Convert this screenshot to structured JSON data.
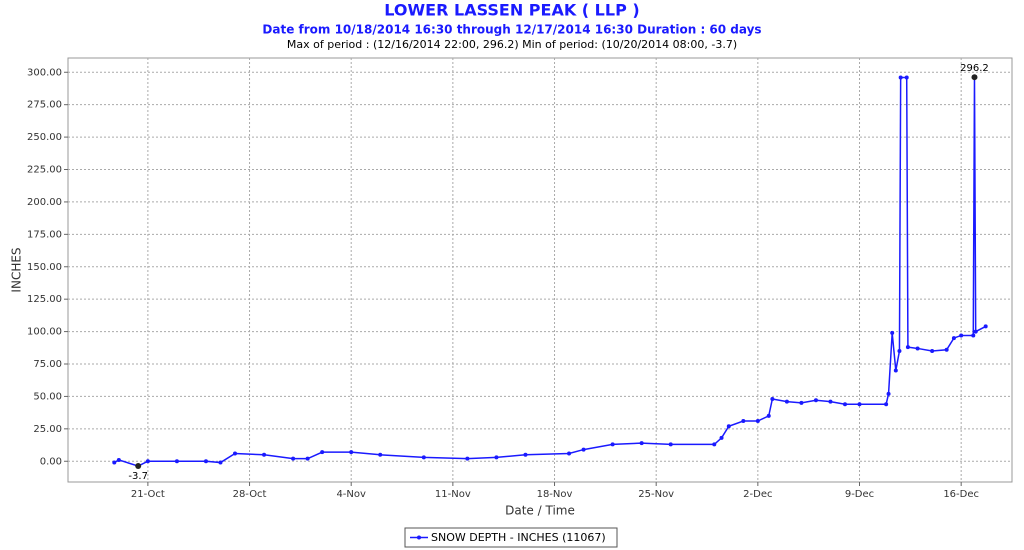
{
  "chart_data": {
    "type": "line",
    "title": "LOWER LASSEN PEAK ( LLP )",
    "subtitle": "Date from 10/18/2014 16:30 through 12/17/2014 16:30 Duration : 60 days",
    "note": "Max of period : (12/16/2014 22:00, 296.2)  Min of period: (10/20/2014 08:00,  -3.7)",
    "x_label": "Date / Time",
    "y_label": "INCHES",
    "grid": true,
    "legend": "bottom",
    "x": [
      "2014-10-18T16:30",
      "2014-10-19T00:00",
      "2014-10-20T08:00",
      "2014-10-21T00:00",
      "2014-10-23T00:00",
      "2014-10-25T00:00",
      "2014-10-26T00:00",
      "2014-10-27T00:00",
      "2014-10-29T00:00",
      "2014-10-31T00:00",
      "2014-11-01T00:00",
      "2014-11-02T00:00",
      "2014-11-04T00:00",
      "2014-11-06T00:00",
      "2014-11-09T00:00",
      "2014-11-12T00:00",
      "2014-11-14T00:00",
      "2014-11-16T00:00",
      "2014-11-19T00:00",
      "2014-11-20T00:00",
      "2014-11-22T00:00",
      "2014-11-24T00:00",
      "2014-11-26T00:00",
      "2014-11-29T00:00",
      "2014-11-29T12:00",
      "2014-11-30T00:00",
      "2014-12-01T00:00",
      "2014-12-02T00:00",
      "2014-12-02T18:00",
      "2014-12-03T00:00",
      "2014-12-04T00:00",
      "2014-12-05T00:00",
      "2014-12-06T00:00",
      "2014-12-07T00:00",
      "2014-12-08T00:00",
      "2014-12-09T00:00",
      "2014-12-10T20:00",
      "2014-12-11T00:00",
      "2014-12-11T06:00",
      "2014-12-11T12:00",
      "2014-12-11T18:00",
      "2014-12-11T20:00",
      "2014-12-12T06:00",
      "2014-12-12T08:00",
      "2014-12-13T00:00",
      "2014-12-14T00:00",
      "2014-12-15T00:00",
      "2014-12-15T12:00",
      "2014-12-16T00:00",
      "2014-12-16T20:00",
      "2014-12-16T22:00",
      "2014-12-17T00:00",
      "2014-12-17T16:30"
    ],
    "series": [
      {
        "name": "SNOW DEPTH - INCHES (11067)",
        "color": "#1a1aff",
        "values": [
          -1,
          1,
          -3.7,
          0,
          0,
          0,
          -1,
          6,
          5,
          2,
          2,
          7,
          7,
          5,
          3,
          2,
          3,
          5,
          6,
          9,
          13,
          14,
          13,
          13,
          18,
          27,
          31,
          31,
          35,
          48,
          46,
          45,
          47,
          46,
          44,
          44,
          44,
          52,
          99,
          70,
          85,
          296,
          296,
          88,
          87,
          85,
          86,
          95,
          97,
          97,
          296.2,
          100,
          104
        ]
      }
    ],
    "xlim": [
      "2014-10-15T12:00",
      "2014-12-19T12:00"
    ],
    "xticks": [
      {
        "value": "2014-10-21T00:00",
        "label": "21-Oct"
      },
      {
        "value": "2014-10-28T00:00",
        "label": "28-Oct"
      },
      {
        "value": "2014-11-04T00:00",
        "label": "4-Nov"
      },
      {
        "value": "2014-11-11T00:00",
        "label": "11-Nov"
      },
      {
        "value": "2014-11-18T00:00",
        "label": "18-Nov"
      },
      {
        "value": "2014-11-25T00:00",
        "label": "25-Nov"
      },
      {
        "value": "2014-12-02T00:00",
        "label": "2-Dec"
      },
      {
        "value": "2014-12-09T00:00",
        "label": "9-Dec"
      },
      {
        "value": "2014-12-16T00:00",
        "label": "16-Dec"
      }
    ],
    "ylim": [
      -16,
      311
    ],
    "yticks": [
      {
        "value": 0,
        "label": "0.00"
      },
      {
        "value": 25,
        "label": "25.00"
      },
      {
        "value": 50,
        "label": "50.00"
      },
      {
        "value": 75,
        "label": "75.00"
      },
      {
        "value": 100,
        "label": "100.00"
      },
      {
        "value": 125,
        "label": "125.00"
      },
      {
        "value": 150,
        "label": "150.00"
      },
      {
        "value": 175,
        "label": "175.00"
      },
      {
        "value": 200,
        "label": "200.00"
      },
      {
        "value": 225,
        "label": "225.00"
      },
      {
        "value": 250,
        "label": "250.00"
      },
      {
        "value": 275,
        "label": "275.00"
      },
      {
        "value": 300,
        "label": "300.00"
      }
    ]
  }
}
